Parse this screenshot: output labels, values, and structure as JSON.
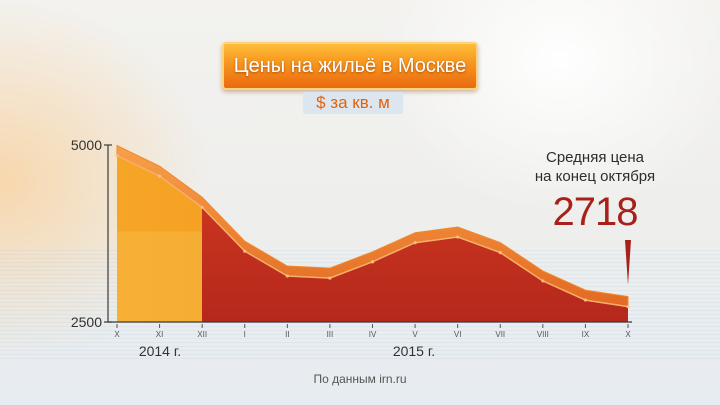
{
  "title": "Цены на жильё в Москве",
  "subtitle": "$ за кв. м",
  "annotation": {
    "label_line1": "Средняя цена",
    "label_line2": "на конец октября",
    "value": "2718"
  },
  "source": "По данным irn.ru",
  "colors": {
    "area_2014": "#f39a1e",
    "area_2015": "#c4301f",
    "ridge": "#f08a2c",
    "axis": "#3a3a3a",
    "accent": "#a8201a"
  },
  "chart_data": {
    "type": "area",
    "categories": [
      "X",
      "XI",
      "XII",
      "I",
      "II",
      "III",
      "IV",
      "V",
      "VI",
      "VII",
      "VIII",
      "IX",
      "X"
    ],
    "values": [
      4850,
      4560,
      4120,
      3500,
      3150,
      3120,
      3350,
      3620,
      3700,
      3480,
      3080,
      2810,
      2718
    ],
    "year_groups": [
      {
        "label": "2014 г.",
        "months": [
          "X",
          "XI",
          "XII"
        ]
      },
      {
        "label": "2015 г.",
        "months": [
          "I",
          "II",
          "III",
          "IV",
          "V",
          "VI",
          "VII",
          "VIII",
          "IX",
          "X"
        ]
      }
    ],
    "ylim": [
      2500,
      5000
    ],
    "yticks": [
      "5000",
      "2500"
    ],
    "xlabel": "",
    "ylabel": "",
    "grid": false,
    "legend": "none"
  }
}
